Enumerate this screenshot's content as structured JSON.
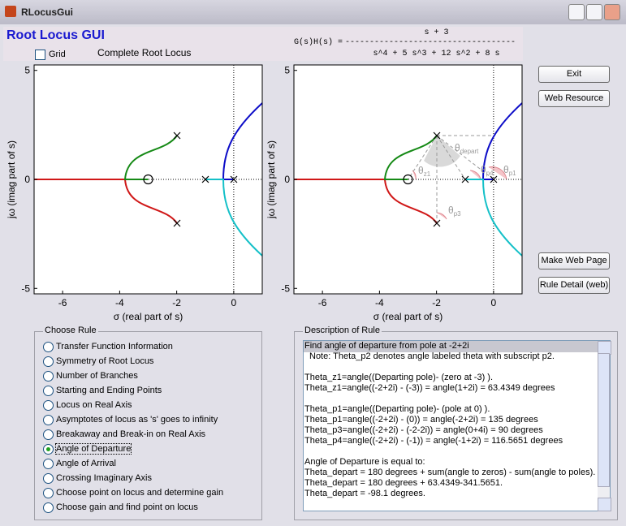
{
  "window": {
    "title": "RLocusGui"
  },
  "header": {
    "title": "Root Locus GUI",
    "transfer_function": {
      "lhs": "G(s)H(s) =",
      "numerator": "s + 3",
      "line": "-----------------------------------",
      "denominator": "s^4 + 5 s^3 + 12 s^2 + 8 s"
    },
    "grid_checkbox": "Grid",
    "plot_title": "Complete Root Locus"
  },
  "plots": [
    {
      "xlim": [
        -7,
        1
      ],
      "ylim": [
        -5.25,
        5.25
      ],
      "xticks": [
        -6,
        -4,
        -2,
        0
      ],
      "yticks": [
        5,
        0,
        -5
      ],
      "xlabel": "σ (real part of s)",
      "ylabel": "jω (imag part of s)"
    },
    {
      "xlim": [
        -7,
        1
      ],
      "ylim": [
        -5.25,
        5.25
      ],
      "xticks": [
        -6,
        -4,
        -2,
        0
      ],
      "yticks": [
        5,
        0,
        -5
      ],
      "xlabel": "σ (real part of s)",
      "ylabel": "jω (imag part of s)",
      "annotations": [
        {
          "symbol": "θ",
          "sub": "z1"
        },
        {
          "symbol": "θ",
          "sub": "depart"
        },
        {
          "symbol": "θ",
          "sub": "p4"
        },
        {
          "symbol": "θ",
          "sub": "p1"
        },
        {
          "symbol": "θ",
          "sub": "p3"
        }
      ]
    }
  ],
  "buttons": [
    "Exit",
    "Web Resource",
    "Make Web Page",
    "Rule Detail (web)"
  ],
  "choose_rule": {
    "title": "Choose Rule",
    "selected": 7,
    "options": [
      "Transfer Function Information",
      "Symmetry of Root Locus",
      "Number of Branches",
      "Starting and Ending Points",
      "Locus on Real Axis",
      "Asymptotes of locus as 's' goes to infinity",
      "Breakaway and Break-in on Real Axis",
      "Angle of Departure",
      "Angle of Arrival",
      "Crossing Imaginary Axis",
      "Choose point on locus and determine gain",
      "Choose gain and find point on locus"
    ]
  },
  "description": {
    "title": "Description of Rule",
    "paragraphs": [
      [
        "Find angle of departure from pole at -2+2i",
        "Note: Theta_p2 denotes angle labeled theta with subscript p2."
      ],
      [
        "Theta_z1=angle((Departing pole)- (zero at -3) ).",
        "Theta_z1=angle((-2+2i) - (-3)) = angle(1+2i) = 63.4349 degrees"
      ],
      [
        "Theta_p1=angle((Departing pole)- (pole at 0) ).",
        "Theta_p1=angle((-2+2i) - (0)) = angle(-2+2i) = 135 degrees",
        "Theta_p3=angle((-2+2i) - (-2-2i)) = angle(0+4i) = 90 degrees",
        "Theta_p4=angle((-2+2i) - (-1)) = angle(-1+2i) = 116.5651 degrees"
      ],
      [
        "Angle of Departure is equal to:",
        "Theta_depart = 180 degrees + sum(angle to zeros) - sum(angle to poles).",
        "Theta_depart = 180 degrees + 63.4349-341.5651.",
        "Theta_depart = -98.1 degrees."
      ]
    ]
  }
}
